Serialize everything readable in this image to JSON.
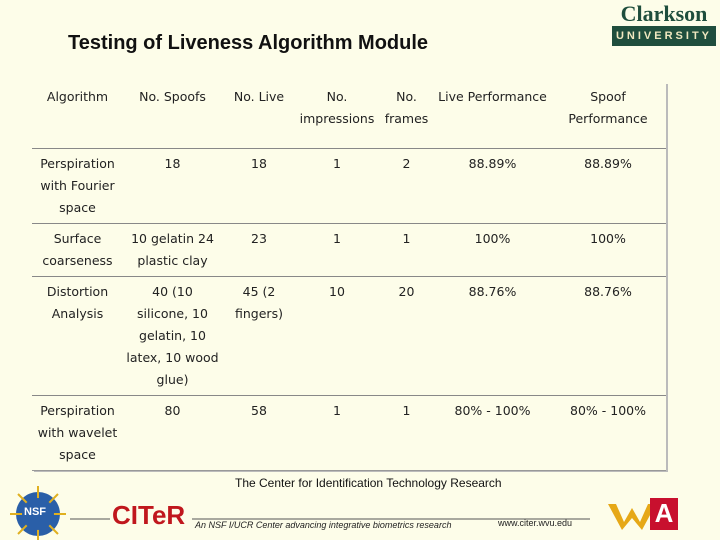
{
  "header": {
    "title": "Testing of Liveness Algorithm Module",
    "logo_name": "Clarkson",
    "logo_sub": "UNIVERSITY"
  },
  "table": {
    "columns": [
      "Algorithm",
      "No. Spoofs",
      "No. Live",
      "No. impressions",
      "No. frames",
      "Live Performance",
      "Spoof Performance"
    ],
    "rows": [
      [
        "Perspiration with Fourier space",
        "18",
        "18",
        "1",
        "2",
        "88.89%",
        "88.89%"
      ],
      [
        "Surface coarseness",
        "10 gelatin 24 plastic clay",
        "23",
        "1",
        "1",
        "100%",
        "100%"
      ],
      [
        "Distortion Analysis",
        "40 (10 silicone, 10 gelatin, 10 latex, 10 wood glue)",
        "45 (2 fingers)",
        "10",
        "20",
        "88.76%",
        "88.76%"
      ],
      [
        "Perspiration with wavelet space",
        "80",
        "58",
        "1",
        "1",
        "80% - 100%",
        "80% - 100%"
      ]
    ]
  },
  "footer": {
    "nsf": "NSF",
    "brand": "CITeR",
    "center": "The Center for Identification Technology Research",
    "tagline": "An NSF I/UCR Center advancing integrative biometrics research",
    "url": "www.citer.wvu.edu",
    "arizona": "A"
  }
}
